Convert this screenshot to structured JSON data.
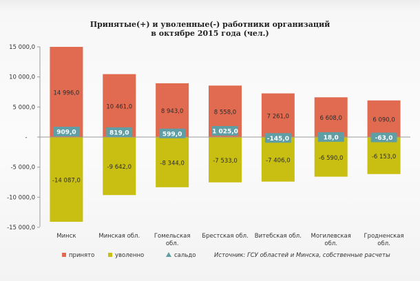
{
  "chart_data": {
    "type": "bar",
    "title_lines": [
      "Принятые(+) и уволенные(-) работники организаций",
      "в октябре 2015 года (чел.)"
    ],
    "categories": [
      [
        "Минск"
      ],
      [
        "Минская обл."
      ],
      [
        "Гомельская",
        "обл."
      ],
      [
        "Брестская обл."
      ],
      [
        "Витебская обл."
      ],
      [
        "Могилевская",
        "обл."
      ],
      [
        "Гродненская",
        "обл."
      ]
    ],
    "series": [
      {
        "name": "принято",
        "color": "#e16b50",
        "values": [
          14996,
          10461,
          8943,
          8558,
          7261,
          6608,
          6090
        ],
        "labels": [
          "14 996,0",
          "10 461,0",
          "8 943,0",
          "8 558,0",
          "7 261,0",
          "6 608,0",
          "6 090,0"
        ]
      },
      {
        "name": "уволенно",
        "color": "#c9bf12",
        "values": [
          -14087,
          -9642,
          -8344,
          -7533,
          -7406,
          -6590,
          -6153
        ],
        "labels": [
          "-14 087,0",
          "-9 642,0",
          "-8 344,0",
          "-7 533,0",
          "-7 406,0",
          "-6 590,0",
          "-6 153,0"
        ]
      },
      {
        "name": "сальдо",
        "color": "#5f9ea5",
        "values": [
          909,
          819,
          599,
          1025,
          -145,
          18,
          -63
        ],
        "labels": [
          "909,0",
          "819,0",
          "599,0",
          "1 025,0",
          "-145,0",
          "18,0",
          "-63,0"
        ]
      }
    ],
    "ylim": [
      -15000,
      15000
    ],
    "yticks": [
      15000,
      10000,
      5000,
      0,
      -5000,
      -10000,
      -15000
    ],
    "ytick_labels": [
      "15 000,0",
      "10 000,0",
      "5 000,0",
      "-",
      "-5 000,0",
      "-10 000,0",
      "-15 000,0"
    ],
    "xlabel": "",
    "ylabel": "",
    "grid": false,
    "legend_position": "bottom"
  },
  "source": "Источник: ГСУ областей и Минска, собственные расчеты"
}
